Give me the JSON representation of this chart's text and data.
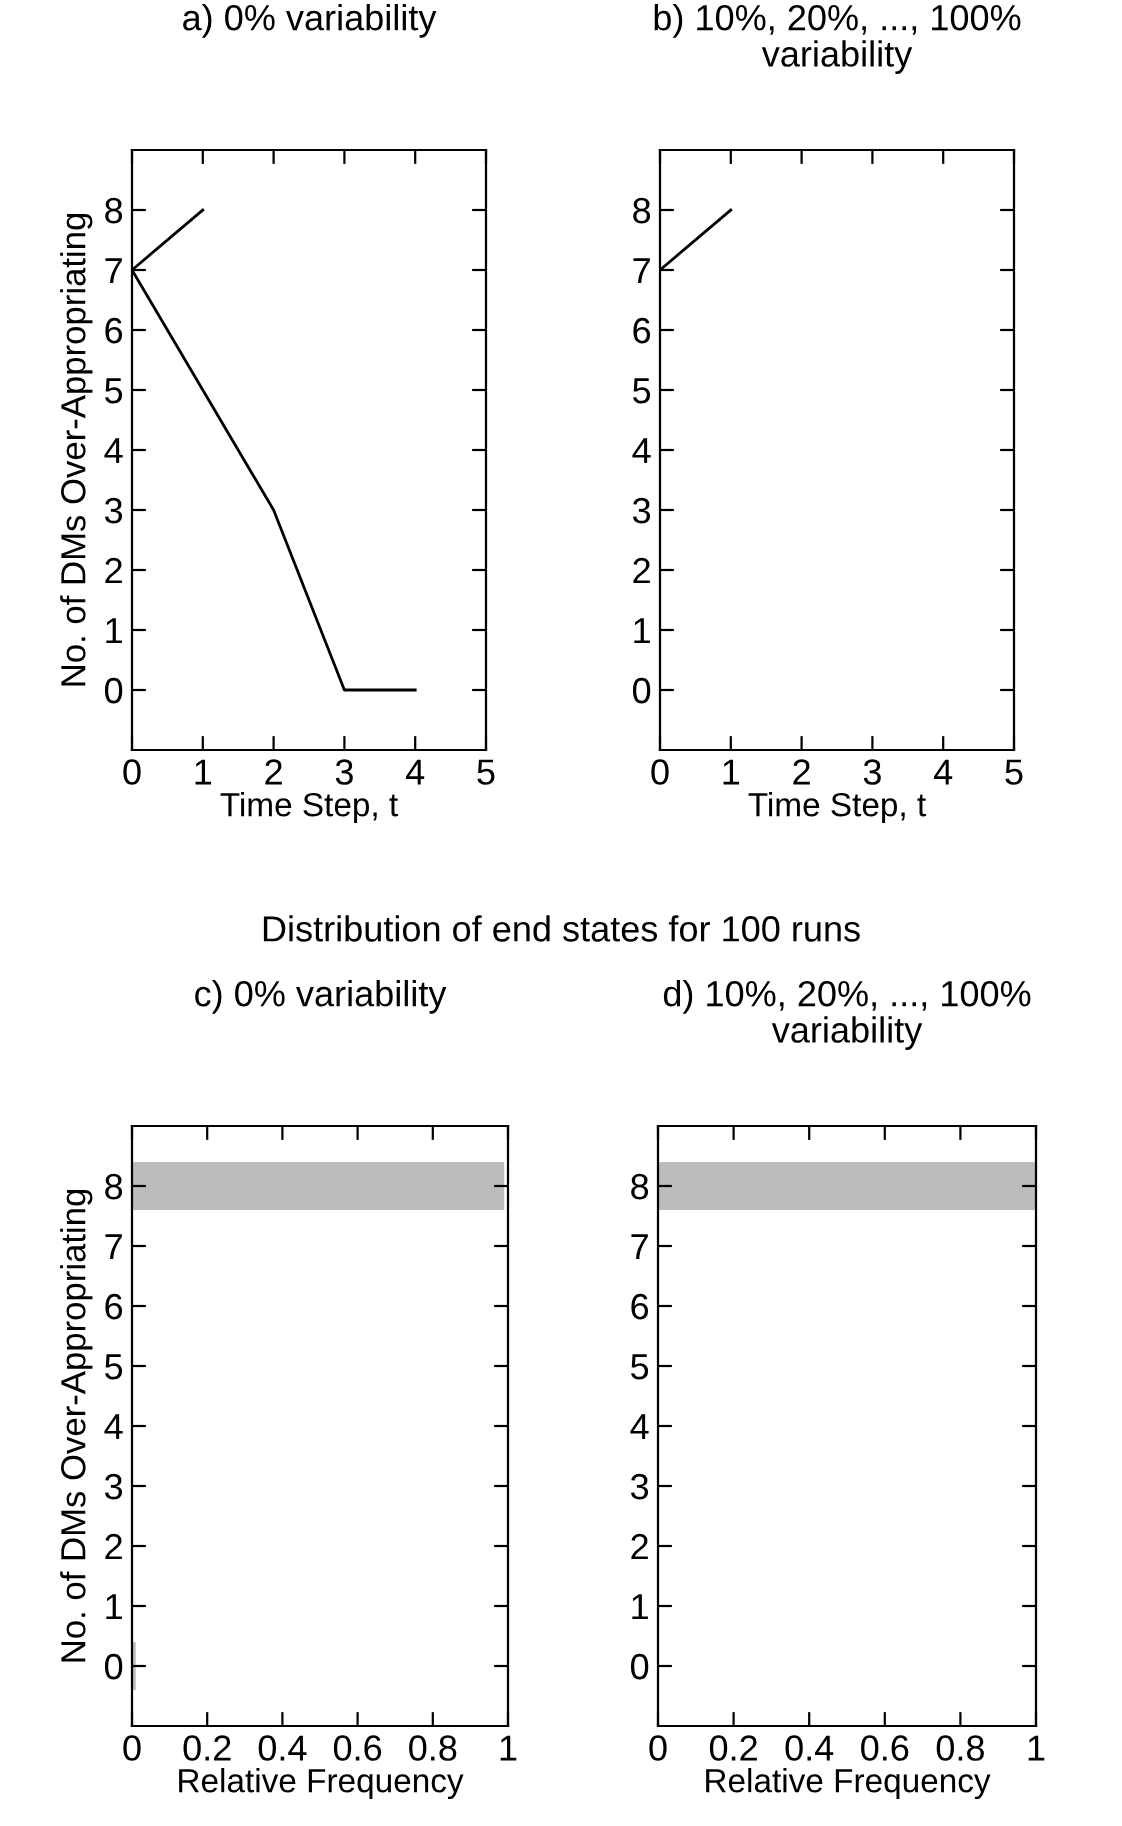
{
  "chart_data": [
    {
      "type": "line",
      "title": "a) 0% variability",
      "xlabel": "Time Step, t",
      "ylabel": "No. of DMs Over-Appropriating",
      "xlim": [
        0,
        5
      ],
      "xticks": [
        0,
        1,
        2,
        3,
        4,
        5
      ],
      "ylim": [
        -1,
        9
      ],
      "yticks": [
        0,
        1,
        2,
        3,
        4,
        5,
        6,
        7,
        8
      ],
      "grid": false,
      "legend": false,
      "marker": "none",
      "line_style": "solid",
      "series": [
        {
          "color": "#000000",
          "x": [
            0,
            1
          ],
          "values": [
            7,
            8
          ]
        },
        {
          "color": "#000000",
          "x": [
            0,
            1,
            2,
            3,
            4
          ],
          "values": [
            7,
            5,
            3,
            0,
            0
          ]
        }
      ]
    },
    {
      "type": "line",
      "title": "b) 10%, 20%, ..., 100%\nvariability",
      "xlabel": "Time Step, t",
      "xlim": [
        0,
        5
      ],
      "xticks": [
        0,
        1,
        2,
        3,
        4,
        5
      ],
      "ylim": [
        -1,
        9
      ],
      "yticks": [
        0,
        1,
        2,
        3,
        4,
        5,
        6,
        7,
        8
      ],
      "grid": false,
      "legend": false,
      "marker": "none",
      "line_style": "solid",
      "series": [
        {
          "color": "#000000",
          "x": [
            0,
            1
          ],
          "values": [
            7,
            8
          ]
        }
      ]
    },
    {
      "type": "bar",
      "orientation": "horizontal",
      "title": "c) 0% variability",
      "annotations": [
        "Distribution of end states for 100 runs"
      ],
      "xlabel": "Relative Frequency",
      "ylabel": "No. of DMs Over-Appropriating",
      "categories": [
        "8",
        "7",
        "6",
        "5",
        "4",
        "3",
        "2",
        "1",
        "0"
      ],
      "xlim": [
        0,
        1
      ],
      "xticks": [
        0,
        0.2,
        0.4,
        0.6,
        0.8,
        1
      ],
      "grid": false,
      "legend": false,
      "color": "#bbbcbe",
      "values": [
        0.99,
        0,
        0,
        0,
        0,
        0,
        0,
        0,
        0.01
      ]
    },
    {
      "type": "bar",
      "orientation": "horizontal",
      "title": "d) 10%, 20%, ..., 100%\nvariability",
      "xlabel": "Relative Frequency",
      "categories": [
        "8",
        "7",
        "6",
        "5",
        "4",
        "3",
        "2",
        "1",
        "0"
      ],
      "xlim": [
        0,
        1
      ],
      "xticks": [
        0,
        0.2,
        0.4,
        0.6,
        0.8,
        1
      ],
      "grid": false,
      "legend": false,
      "color": "#bbbcbe",
      "values": [
        1,
        0,
        0,
        0,
        0,
        0,
        0,
        0,
        0
      ]
    }
  ]
}
